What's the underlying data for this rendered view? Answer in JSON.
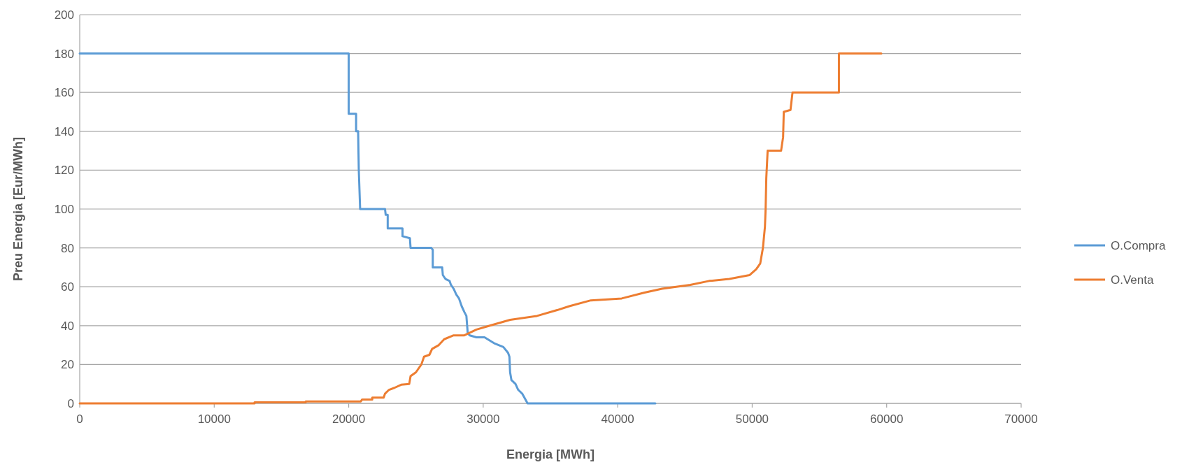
{
  "chart_data": {
    "type": "line",
    "xlabel": "Energia [MWh]",
    "ylabel": "Preu Energia [Eur/MWh]",
    "xlim": [
      0,
      70000
    ],
    "xticks": [
      0,
      10000,
      20000,
      30000,
      40000,
      50000,
      60000,
      70000
    ],
    "ylim": [
      0,
      200
    ],
    "yticks": [
      0,
      20,
      40,
      60,
      80,
      100,
      120,
      140,
      160,
      180,
      200
    ],
    "grid": "y",
    "legend": "right",
    "marker": "none",
    "line_style": "solid",
    "series": [
      {
        "name": "O.Compra",
        "color": "#5b9bd5",
        "x": [
          0,
          20000,
          20000,
          20550,
          20550,
          20700,
          20750,
          20800,
          20850,
          22700,
          22750,
          22900,
          22900,
          24000,
          24000,
          24550,
          24600,
          26150,
          26250,
          26250,
          26950,
          27000,
          27200,
          27500,
          27600,
          27800,
          28000,
          28200,
          28400,
          28600,
          28750,
          28850,
          29000,
          29500,
          30100,
          30800,
          31500,
          31850,
          31950,
          32000,
          32100,
          32400,
          32600,
          32900,
          33300,
          42800
        ],
        "values": [
          180,
          180,
          149,
          149,
          140,
          140,
          120,
          110,
          100,
          100,
          97,
          97,
          90,
          90,
          86,
          85,
          80,
          80,
          79,
          70,
          70,
          66,
          64,
          63,
          61,
          59,
          56,
          54,
          50,
          47,
          45,
          36,
          35,
          34,
          34,
          31,
          29,
          26,
          24,
          16,
          12,
          10,
          7,
          5,
          0,
          0
        ]
      },
      {
        "name": "O.Venta",
        "color": "#ed7d31",
        "x": [
          0,
          13000,
          13000,
          16800,
          16800,
          20900,
          21000,
          21750,
          21750,
          22600,
          22700,
          23000,
          23400,
          23900,
          24500,
          24600,
          25000,
          25400,
          25600,
          26000,
          26200,
          26700,
          27100,
          27800,
          28600,
          29500,
          30500,
          32000,
          34000,
          35500,
          36400,
          38000,
          40300,
          42000,
          43300,
          45400,
          46800,
          48300,
          49800,
          50300,
          50600,
          50800,
          50950,
          51000,
          51050,
          51150,
          52150,
          52300,
          52350,
          52850,
          53000,
          56450,
          56450,
          59600
        ],
        "values": [
          0,
          0,
          0.5,
          0.5,
          1,
          1,
          2,
          2,
          3,
          3,
          5,
          7,
          8,
          9.6,
          10,
          14,
          16,
          20,
          24,
          25,
          28,
          30,
          33,
          35,
          35,
          38,
          40,
          43,
          45,
          48,
          50,
          53,
          54,
          57,
          59,
          61,
          63,
          64,
          66,
          69,
          72,
          80,
          91,
          100,
          116,
          130,
          130,
          137,
          150,
          151,
          160,
          160,
          180,
          180
        ]
      }
    ]
  }
}
